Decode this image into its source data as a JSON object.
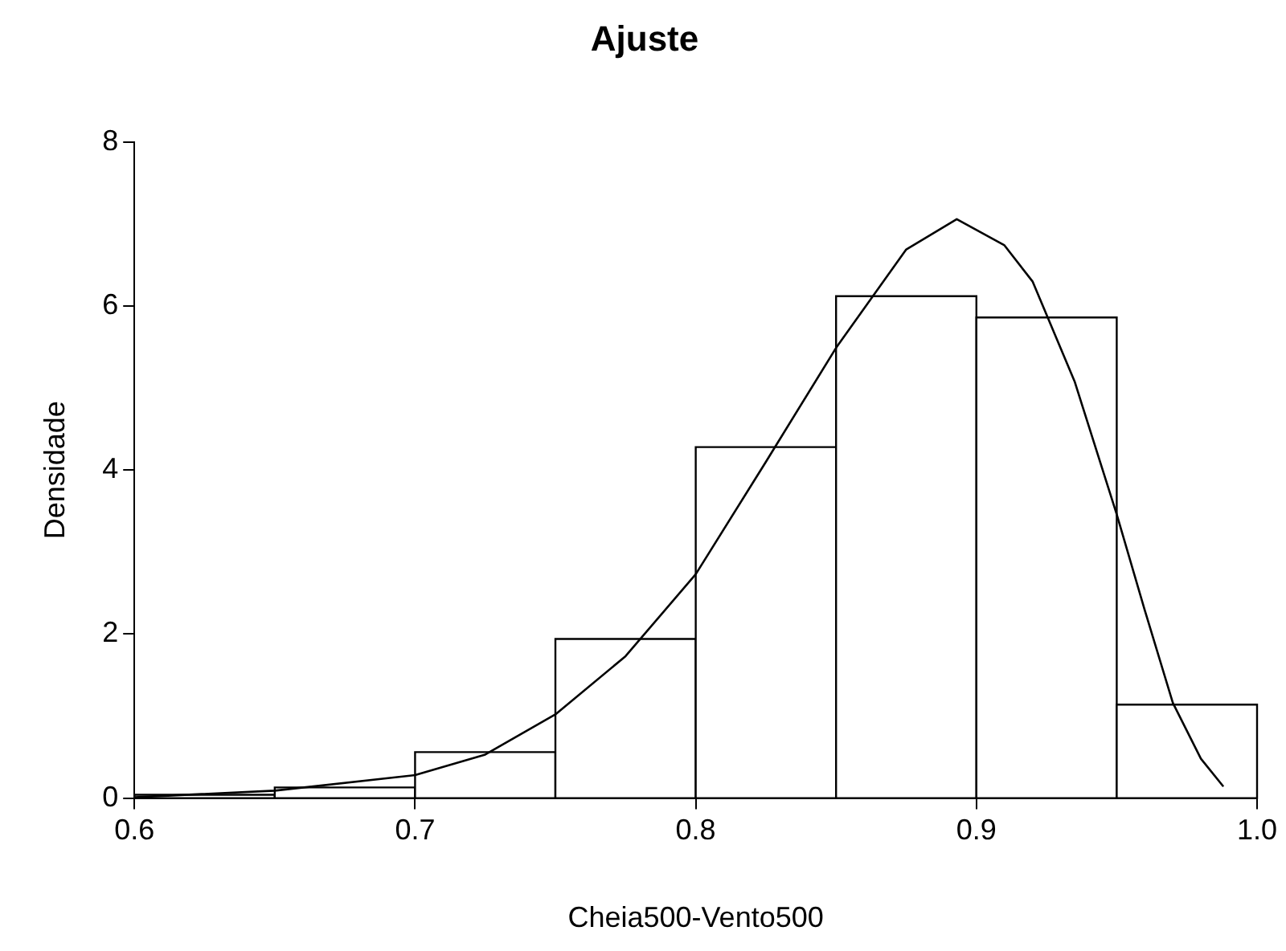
{
  "chart_data": {
    "type": "histogram",
    "title": "Ajuste",
    "xlabel": "Cheia500-Vento500",
    "ylabel": "Densidade",
    "bins": [
      0.6,
      0.65,
      0.7,
      0.75,
      0.8,
      0.85,
      0.9,
      0.95,
      1.0
    ],
    "values": [
      0.04,
      0.13,
      0.56,
      1.94,
      4.28,
      6.12,
      5.86,
      1.14
    ],
    "color": "#ffffff",
    "series": [
      {
        "type": "line",
        "color": "#000000",
        "x": [
          0.6,
          0.65,
          0.7,
          0.725,
          0.75,
          0.775,
          0.8,
          0.825,
          0.85,
          0.875,
          0.893,
          0.91,
          0.92,
          0.935,
          0.95,
          0.96,
          0.97,
          0.98,
          0.988
        ],
        "values": [
          0.01,
          0.09,
          0.28,
          0.53,
          1.02,
          1.73,
          2.73,
          4.1,
          5.49,
          6.69,
          7.06,
          6.74,
          6.3,
          5.08,
          3.46,
          2.29,
          1.16,
          0.48,
          0.14
        ]
      }
    ],
    "xlim": [
      0.6,
      1.0
    ],
    "xticks": [
      {
        "value": 0.6,
        "label": "0.6"
      },
      {
        "value": 0.7,
        "label": "0.7"
      },
      {
        "value": 0.8,
        "label": "0.8"
      },
      {
        "value": 0.9,
        "label": "0.9"
      },
      {
        "value": 1.0,
        "label": "1.0"
      }
    ],
    "ylim": [
      0,
      8
    ],
    "yticks": [
      0,
      2,
      4,
      6,
      8
    ],
    "grid": false,
    "legend": false,
    "marker": "none",
    "line_style": "solid"
  }
}
